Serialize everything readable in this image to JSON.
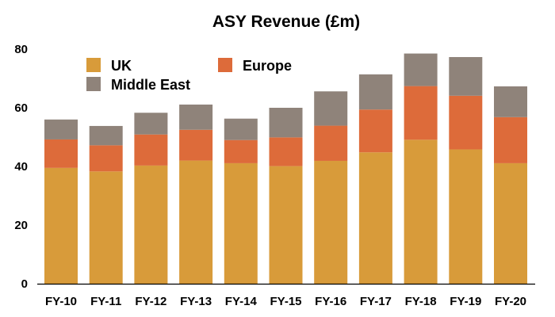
{
  "chart_data": {
    "type": "bar",
    "stacked": true,
    "title": "ASY Revenue (£m)",
    "xlabel": "",
    "ylabel": "",
    "ylim": [
      0,
      80
    ],
    "yticks": [
      0,
      20,
      40,
      60,
      80
    ],
    "grid": false,
    "legend_position": "top-left",
    "categories": [
      "FY-10",
      "FY-11",
      "FY-12",
      "FY-13",
      "FY-14",
      "FY-15",
      "FY-16",
      "FY-17",
      "FY-18",
      "FY-19",
      "FY-20"
    ],
    "series": [
      {
        "name": "UK",
        "color": "#d89b3a",
        "values": [
          39.5,
          38.3,
          40.3,
          42.0,
          41.1,
          40.1,
          41.9,
          44.8,
          49.1,
          45.8,
          41.1
        ]
      },
      {
        "name": "Europe",
        "color": "#dd6b3a",
        "values": [
          9.7,
          8.9,
          10.6,
          10.5,
          7.9,
          9.8,
          12.0,
          14.6,
          18.3,
          18.3,
          15.7
        ]
      },
      {
        "name": "Middle East",
        "color": "#8f837a",
        "values": [
          6.8,
          6.6,
          7.4,
          8.6,
          7.3,
          10.1,
          11.7,
          12.0,
          11.1,
          13.2,
          10.5
        ]
      }
    ]
  }
}
